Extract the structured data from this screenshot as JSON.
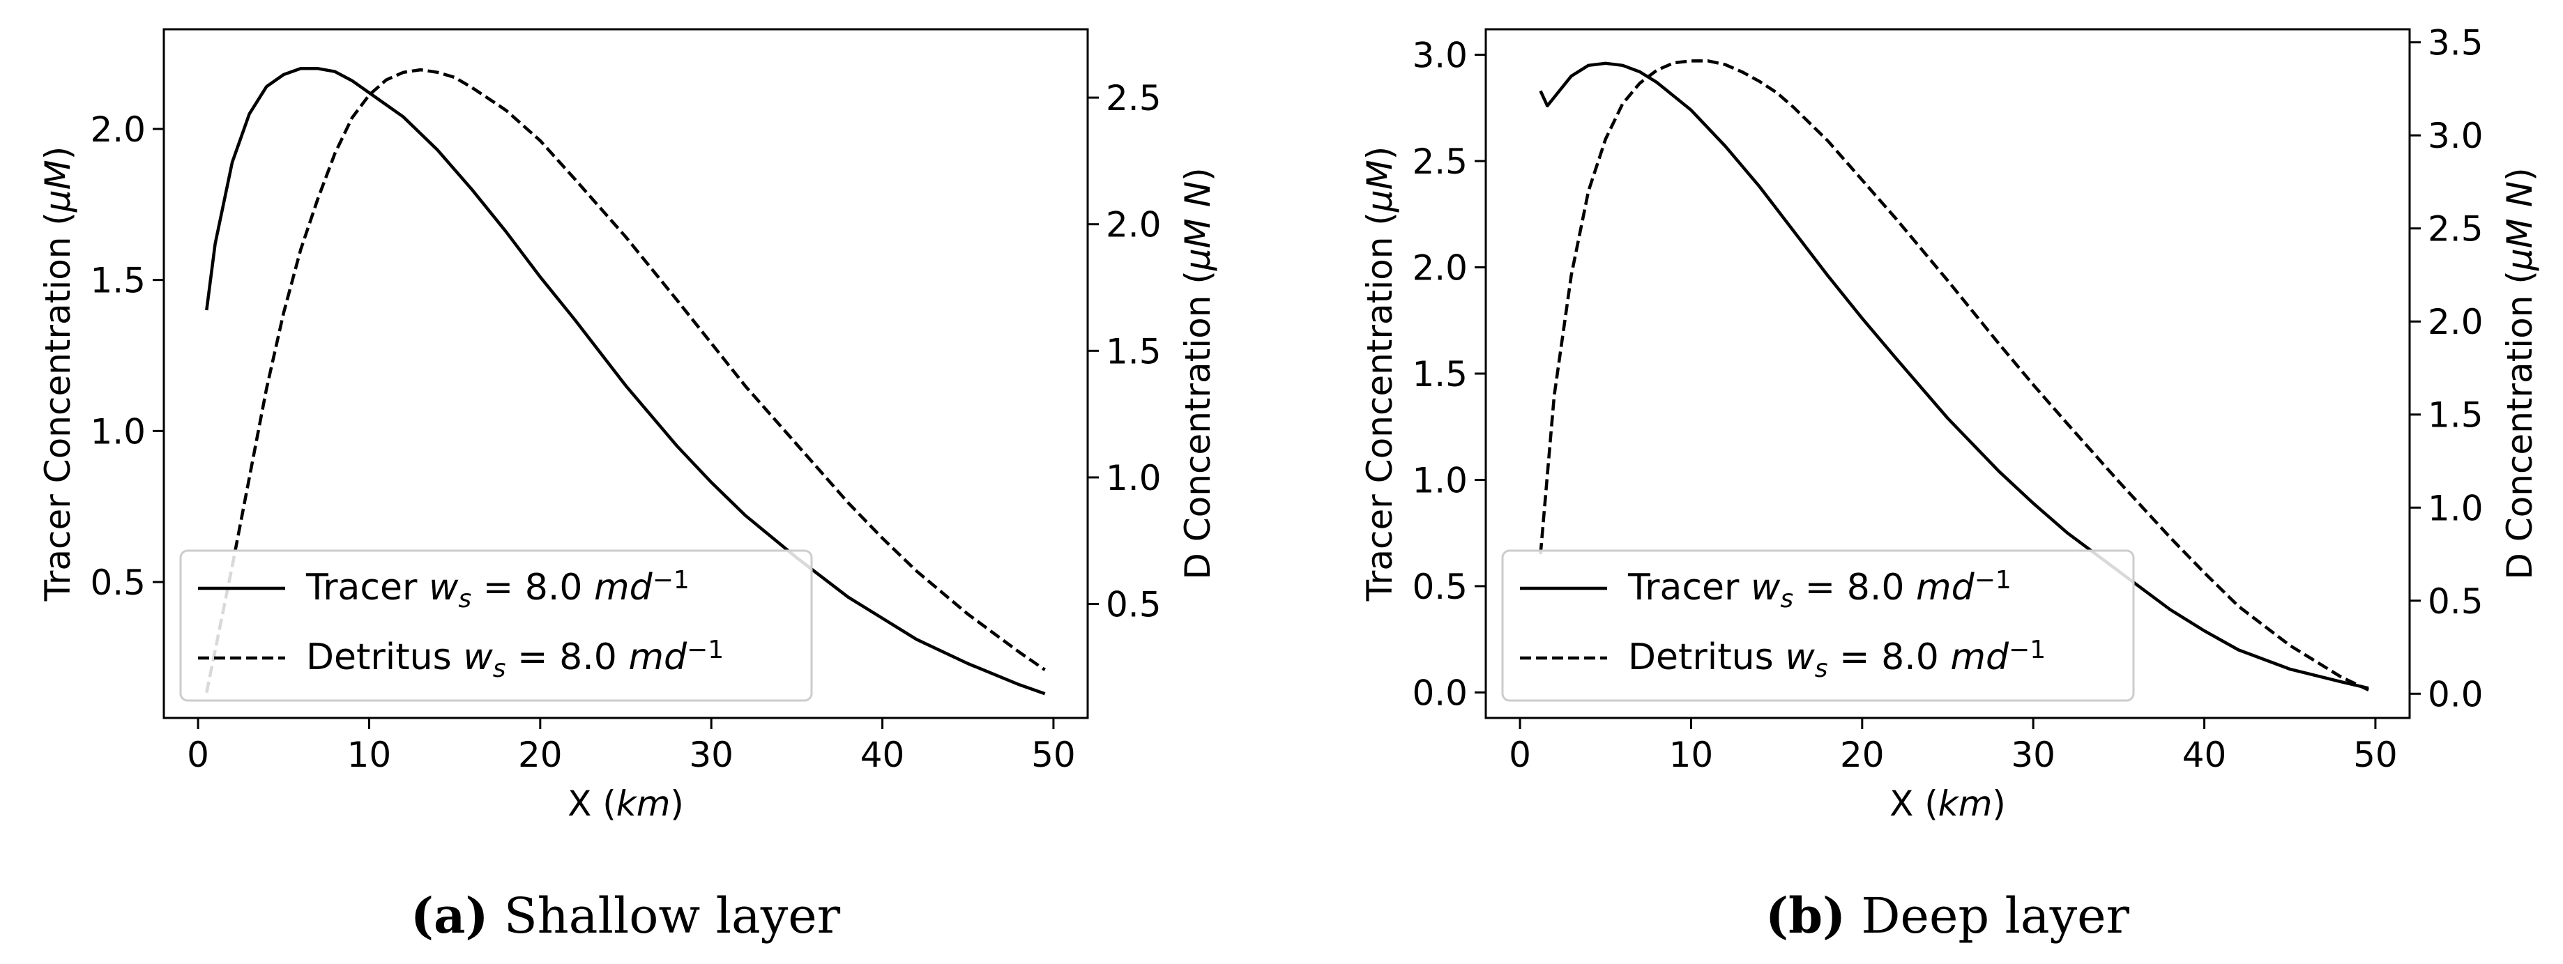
{
  "chart_data": [
    {
      "type": "line",
      "caption_tag": "(a)",
      "caption": "Shallow layer",
      "xlabel": "X (km)",
      "ylabel": "Tracer Concentration (μM)",
      "y2label": "D Concentration (μM N)",
      "xlim": [
        -2,
        52
      ],
      "ylim": [
        0.05,
        2.33
      ],
      "y2lim": [
        0.05,
        2.77
      ],
      "xticks": [
        "0",
        "10",
        "20",
        "30",
        "40",
        "50"
      ],
      "yticks": [
        "0.5",
        "1.0",
        "1.5",
        "2.0"
      ],
      "y2ticks": [
        "0.5",
        "1.0",
        "1.5",
        "2.0",
        "2.5"
      ],
      "grid": false,
      "legend_position": "lower-left",
      "series": [
        {
          "name": "Tracer w_s = 8.0 md^-1",
          "legend_text": "Tracer ws = 8.0 md⁻¹",
          "axis": "left",
          "style": "solid",
          "x": [
            0.5,
            1,
            2,
            3,
            4,
            5,
            6,
            7,
            8,
            9,
            10,
            12,
            14,
            16,
            18,
            20,
            22,
            25,
            28,
            30,
            32,
            35,
            38,
            40,
            42,
            45,
            48,
            49.5
          ],
          "y": [
            1.4,
            1.62,
            1.89,
            2.05,
            2.14,
            2.18,
            2.2,
            2.2,
            2.19,
            2.16,
            2.12,
            2.04,
            1.93,
            1.8,
            1.66,
            1.51,
            1.37,
            1.15,
            0.95,
            0.83,
            0.72,
            0.58,
            0.45,
            0.38,
            0.31,
            0.23,
            0.16,
            0.13
          ]
        },
        {
          "name": "Detritus w_s = 8.0 md^-1",
          "legend_text": "Detritus ws = 8.0 md⁻¹",
          "axis": "right",
          "style": "dashed",
          "x": [
            0.5,
            2,
            3,
            4,
            5,
            6,
            7,
            8,
            9,
            10,
            11,
            12,
            13,
            14,
            15,
            16,
            18,
            20,
            22,
            25,
            28,
            30,
            32,
            35,
            38,
            40,
            42,
            45,
            48,
            49.5
          ],
          "y": [
            0.15,
            0.65,
            1.0,
            1.35,
            1.65,
            1.9,
            2.1,
            2.28,
            2.42,
            2.51,
            2.57,
            2.6,
            2.61,
            2.6,
            2.58,
            2.54,
            2.45,
            2.33,
            2.18,
            1.95,
            1.7,
            1.53,
            1.36,
            1.13,
            0.9,
            0.76,
            0.63,
            0.46,
            0.31,
            0.24
          ]
        }
      ]
    },
    {
      "type": "line",
      "caption_tag": "(b)",
      "caption": "Deep layer",
      "xlabel": "X (km)",
      "ylabel": "Tracer Concentration (μM)",
      "y2label": "D Concentration (μM N)",
      "xlim": [
        -2,
        52
      ],
      "ylim": [
        -0.12,
        3.12
      ],
      "y2lim": [
        -0.13,
        3.57
      ],
      "xticks": [
        "0",
        "10",
        "20",
        "30",
        "40",
        "50"
      ],
      "yticks": [
        "0.0",
        "0.5",
        "1.0",
        "1.5",
        "2.0",
        "2.5",
        "3.0"
      ],
      "y2ticks": [
        "0.0",
        "0.5",
        "1.0",
        "1.5",
        "2.0",
        "2.5",
        "3.0",
        "3.5"
      ],
      "grid": false,
      "legend_position": "lower-left",
      "series": [
        {
          "name": "Tracer w_s = 8.0 md^-1",
          "legend_text": "Tracer ws = 8.0 md⁻¹",
          "axis": "left",
          "style": "solid",
          "x": [
            1.2,
            1.6,
            2,
            3,
            4,
            5,
            6,
            7,
            8,
            10,
            12,
            14,
            16,
            18,
            20,
            22,
            25,
            28,
            30,
            32,
            35,
            38,
            40,
            42,
            45,
            48,
            49.6
          ],
          "y": [
            2.83,
            2.76,
            2.8,
            2.9,
            2.95,
            2.96,
            2.95,
            2.92,
            2.87,
            2.74,
            2.57,
            2.38,
            2.17,
            1.96,
            1.76,
            1.57,
            1.29,
            1.04,
            0.89,
            0.75,
            0.57,
            0.39,
            0.29,
            0.2,
            0.11,
            0.05,
            0.02
          ]
        },
        {
          "name": "Detritus w_s = 8.0 md^-1",
          "legend_text": "Detritus ws = 8.0 md⁻¹",
          "axis": "right",
          "style": "dashed",
          "x": [
            1.2,
            2,
            3,
            4,
            5,
            6,
            7,
            8,
            9,
            10,
            11,
            12,
            13,
            14,
            15,
            16,
            18,
            20,
            22,
            25,
            28,
            30,
            32,
            35,
            38,
            40,
            42,
            45,
            48,
            49.6
          ],
          "y": [
            0.75,
            1.6,
            2.25,
            2.7,
            2.98,
            3.17,
            3.28,
            3.35,
            3.39,
            3.4,
            3.4,
            3.38,
            3.34,
            3.29,
            3.23,
            3.15,
            2.97,
            2.76,
            2.55,
            2.22,
            1.88,
            1.66,
            1.45,
            1.14,
            0.84,
            0.65,
            0.47,
            0.26,
            0.09,
            0.02
          ]
        }
      ]
    }
  ]
}
